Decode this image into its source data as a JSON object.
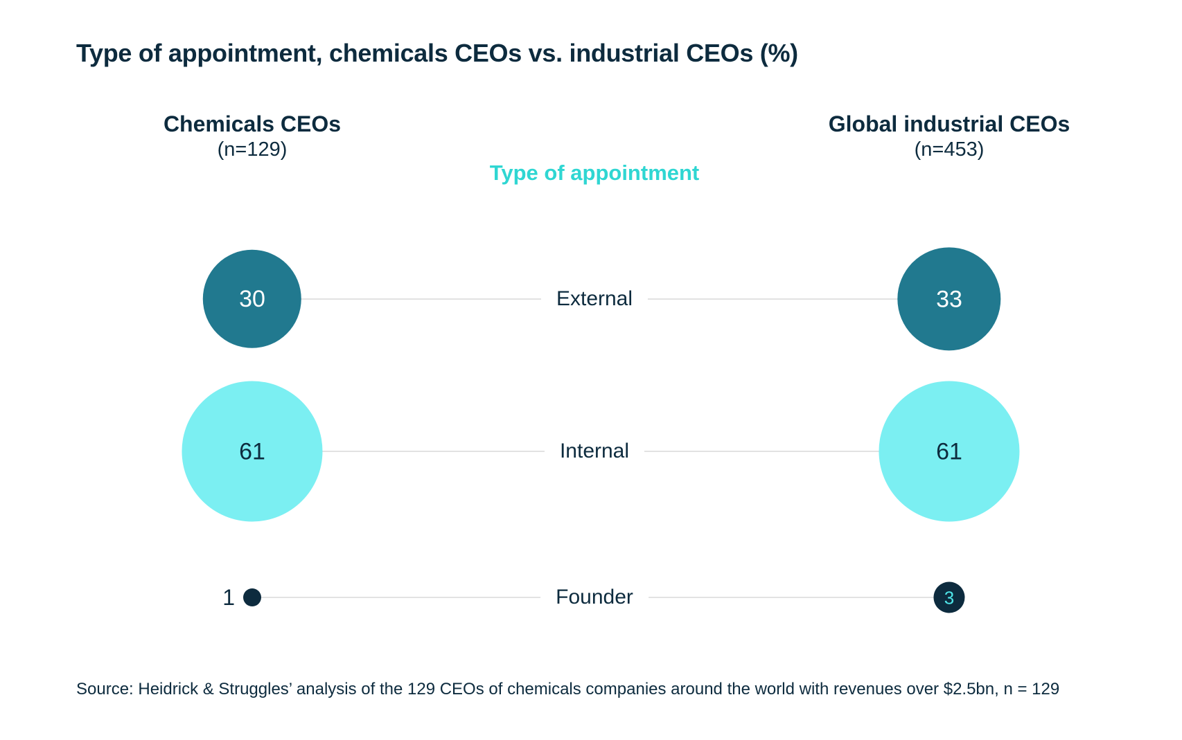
{
  "title": "Type of appointment, chemicals CEOs vs. industrial CEOs (%)",
  "columns": {
    "left": {
      "title": "Chemicals CEOs",
      "subtitle": "(n=129)"
    },
    "right": {
      "title": "Global industrial CEOs",
      "subtitle": "(n=453)"
    }
  },
  "center_label": "Type of appointment",
  "source": "Source: Heidrick & Struggles’ analysis of the 129 CEOs of chemicals companies around the world with revenues over $2.5bn, n = 129",
  "colors": {
    "navy_text": "#0D2B3E",
    "accent_cyan": "#2FD6D2",
    "connector_line": "#E2E2E2",
    "row_bubbles": [
      {
        "fill": "#21798F",
        "text": "#FFFFFF"
      },
      {
        "fill": "#7BEFF2",
        "text": "#0D2B3E"
      },
      {
        "fill": "#0D2B3E",
        "text": "#4FE5E9"
      }
    ]
  },
  "chart_data": {
    "type": "bubble",
    "categories": [
      "External",
      "Internal",
      "Founder"
    ],
    "series": [
      {
        "name": "Chemicals CEOs (n=129)",
        "values": [
          30,
          61,
          1
        ]
      },
      {
        "name": "Global industrial CEOs (n=453)",
        "values": [
          33,
          61,
          3
        ]
      }
    ],
    "unit": "%",
    "layout": {
      "legend_position": "column headers top",
      "bubble_area_proportional_to_value": true,
      "rows_top_to_bottom": [
        "External",
        "Internal",
        "Founder"
      ]
    }
  }
}
